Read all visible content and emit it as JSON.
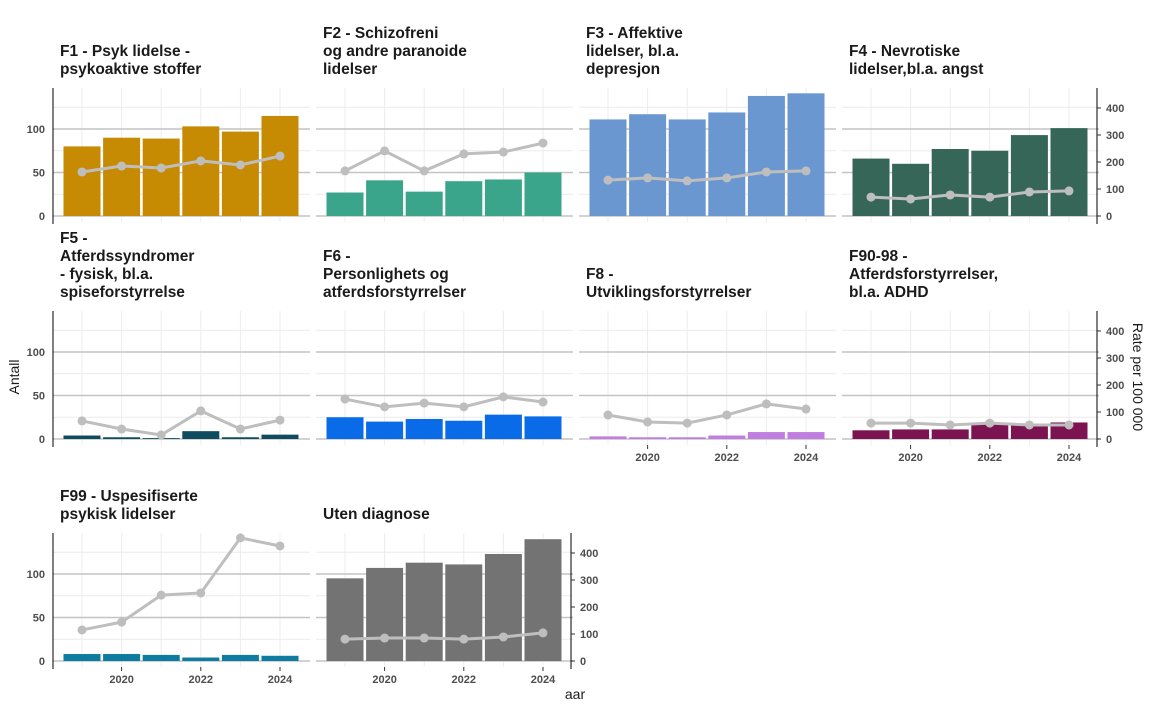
{
  "chart_data": {
    "type": "bar+line",
    "xlabel": "aar",
    "ylabel_left": "Antall",
    "ylabel_right": "Rate per 100 000",
    "x": [
      2019,
      2020,
      2021,
      2022,
      2023,
      2024
    ],
    "x_ticks": [
      "2020",
      "2022",
      "2024"
    ],
    "ylim_left": [
      0,
      145
    ],
    "y_ticks_left": [
      "0",
      "50",
      "100"
    ],
    "ylim_right": [
      0,
      480
    ],
    "y_ticks_right": [
      "0",
      "100",
      "200",
      "300",
      "400"
    ],
    "grid": true,
    "line_color": "#BEBEBE",
    "panels": [
      {
        "title": [
          "F1 - Psyk lidelse -",
          "psykoaktive stoffer"
        ],
        "color": "#C68A03",
        "antall": [
          80,
          90,
          89,
          103,
          97,
          115
        ],
        "rate": [
          163,
          185,
          178,
          204,
          189,
          222
        ]
      },
      {
        "title": [
          "F2 - Schizofreni",
          "og andre paranoide",
          "lidelser"
        ],
        "color": "#3AA58A",
        "antall": [
          27,
          41,
          28,
          40,
          42,
          50
        ],
        "rate": [
          167,
          241,
          167,
          230,
          237,
          270
        ]
      },
      {
        "title": [
          "F3 - Affektive",
          "lidelser, bl.a.",
          "depresjon"
        ],
        "color": "#6A97D0",
        "antall": [
          111,
          117,
          111,
          119,
          138,
          141
        ],
        "rate": [
          133,
          141,
          130,
          141,
          163,
          167
        ]
      },
      {
        "title": [
          "F4 - Nevrotiske",
          "lidelser,bl.a. angst"
        ],
        "color": "#356657",
        "antall": [
          66,
          60,
          77,
          75,
          93,
          101
        ],
        "rate": [
          70,
          63,
          78,
          70,
          89,
          93
        ]
      },
      {
        "title": [
          "F5 -",
          "Atferdssyndromer",
          "- fysisk, bl.a.",
          "spiseforstyrrelse"
        ],
        "color": "#0D4B5E",
        "antall": [
          4,
          2,
          1,
          9,
          2,
          5
        ],
        "rate": [
          67,
          37,
          15,
          104,
          37,
          70
        ]
      },
      {
        "title": [
          "F6 -",
          "Personlighets og",
          "atferdsforstyrrelser"
        ],
        "color": "#0A6BE8",
        "antall": [
          25,
          20,
          23,
          21,
          28,
          26
        ],
        "rate": [
          148,
          119,
          133,
          119,
          156,
          137
        ]
      },
      {
        "title": [
          "F8 -",
          "Utviklingsforstyrrelser"
        ],
        "color": "#C07FE0",
        "antall": [
          3,
          2,
          2,
          4,
          8,
          8
        ],
        "rate": [
          89,
          63,
          59,
          89,
          130,
          111
        ]
      },
      {
        "title": [
          "F90-98 -",
          "Atferdsforstyrrelser,",
          "bl.a. ADHD"
        ],
        "color": "#7B1450",
        "antall": [
          10,
          11,
          11,
          17,
          17,
          19
        ],
        "rate": [
          59,
          59,
          52,
          59,
          52,
          52
        ]
      },
      {
        "title": [
          "F99 - Uspesifiserte",
          "psykisk lidelser"
        ],
        "color": "#0E7BA0",
        "antall": [
          8,
          8,
          7,
          4,
          7,
          6
        ],
        "rate": [
          115,
          144,
          244,
          252,
          456,
          426
        ]
      },
      {
        "title": [
          "Uten diagnose"
        ],
        "color": "#737373",
        "antall": [
          95,
          107,
          113,
          111,
          123,
          140
        ],
        "rate": [
          81,
          85,
          85,
          81,
          89,
          104
        ]
      }
    ]
  }
}
